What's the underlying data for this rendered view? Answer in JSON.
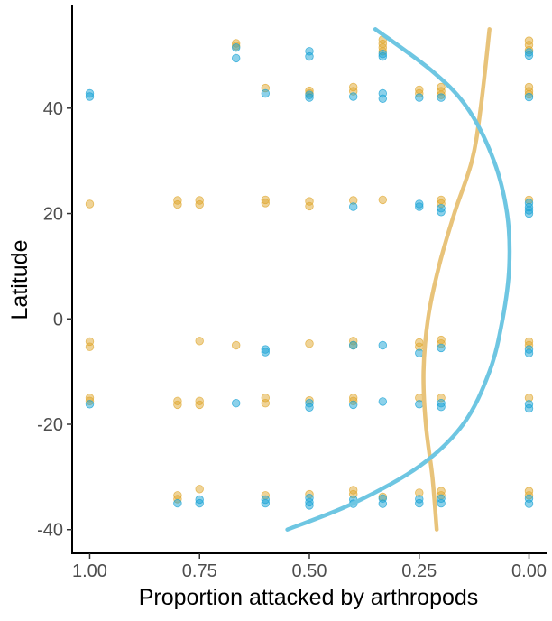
{
  "chart_data": {
    "type": "scatter",
    "xlabel": "Proportion attacked by arthropods",
    "ylabel": "Latitude",
    "x_reversed": true,
    "xlim": [
      1.04,
      -0.04
    ],
    "ylim": [
      -44.5,
      59.5
    ],
    "x_ticks": [
      1.0,
      0.75,
      0.5,
      0.25,
      0.0
    ],
    "x_tick_labels": [
      "1.00",
      "0.75",
      "0.50",
      "0.25",
      "0.00"
    ],
    "y_ticks": [
      40,
      20,
      0,
      -20,
      -40
    ],
    "y_tick_labels": [
      "40",
      "20",
      "0",
      "-20",
      "-40"
    ],
    "grid": false,
    "legend": "none",
    "series": [
      {
        "color": "#E0A830",
        "points": [
          [
            0.667,
            52.3
          ],
          [
            0.667,
            51.8
          ],
          [
            0.6,
            43.8
          ],
          [
            0.5,
            43.3
          ],
          [
            0.5,
            42.8
          ],
          [
            0.4,
            44.0
          ],
          [
            0.4,
            43.2
          ],
          [
            0.333,
            53.0
          ],
          [
            0.333,
            52.2
          ],
          [
            0.333,
            51.5
          ],
          [
            0.333,
            50.8
          ],
          [
            0.25,
            43.5
          ],
          [
            0.25,
            42.8
          ],
          [
            0.2,
            44.0
          ],
          [
            0.2,
            43.2
          ],
          [
            0.2,
            42.5
          ],
          [
            0.0,
            52.8
          ],
          [
            0.0,
            52.0
          ],
          [
            0.0,
            51.0
          ],
          [
            0.0,
            44.0
          ],
          [
            0.0,
            43.2
          ],
          [
            0.0,
            42.6
          ],
          [
            1.0,
            21.8
          ],
          [
            0.8,
            22.5
          ],
          [
            0.8,
            21.7
          ],
          [
            0.75,
            22.5
          ],
          [
            0.75,
            21.7
          ],
          [
            0.6,
            22.6
          ],
          [
            0.6,
            22.0
          ],
          [
            0.5,
            22.3
          ],
          [
            0.5,
            21.4
          ],
          [
            0.4,
            22.5
          ],
          [
            0.333,
            22.6
          ],
          [
            0.2,
            22.6
          ],
          [
            0.2,
            21.9
          ],
          [
            0.0,
            22.6
          ],
          [
            1.0,
            -4.3
          ],
          [
            1.0,
            -5.3
          ],
          [
            0.75,
            -4.2
          ],
          [
            0.667,
            -5.0
          ],
          [
            0.5,
            -4.7
          ],
          [
            0.4,
            -4.2
          ],
          [
            0.4,
            -5.0
          ],
          [
            0.25,
            -4.5
          ],
          [
            0.25,
            -5.3
          ],
          [
            0.2,
            -4.0
          ],
          [
            0.2,
            -4.7
          ],
          [
            0.0,
            -4.3
          ],
          [
            0.0,
            -5.0
          ],
          [
            1.0,
            -15.0
          ],
          [
            1.0,
            -15.6
          ],
          [
            0.8,
            -15.6
          ],
          [
            0.8,
            -16.3
          ],
          [
            0.75,
            -15.6
          ],
          [
            0.75,
            -16.3
          ],
          [
            0.6,
            -15.0
          ],
          [
            0.6,
            -16.0
          ],
          [
            0.5,
            -15.5
          ],
          [
            0.4,
            -15.0
          ],
          [
            0.4,
            -15.6
          ],
          [
            0.25,
            -15.0
          ],
          [
            0.2,
            -15.0
          ],
          [
            0.0,
            -15.0
          ],
          [
            0.8,
            -33.5
          ],
          [
            0.8,
            -34.2
          ],
          [
            0.75,
            -32.3
          ],
          [
            0.6,
            -33.5
          ],
          [
            0.5,
            -33.3
          ],
          [
            0.4,
            -33.3
          ],
          [
            0.4,
            -32.5
          ],
          [
            0.333,
            -33.8
          ],
          [
            0.25,
            -33.0
          ],
          [
            0.2,
            -33.5
          ],
          [
            0.2,
            -32.7
          ],
          [
            0.0,
            -32.7
          ],
          [
            0.0,
            -33.5
          ]
        ]
      },
      {
        "color": "#1AA3D6",
        "points": [
          [
            1.0,
            42.8
          ],
          [
            1.0,
            42.2
          ],
          [
            0.667,
            51.5
          ],
          [
            0.667,
            49.5
          ],
          [
            0.6,
            42.8
          ],
          [
            0.5,
            50.8
          ],
          [
            0.5,
            49.8
          ],
          [
            0.5,
            42.5
          ],
          [
            0.5,
            42.0
          ],
          [
            0.4,
            42.2
          ],
          [
            0.333,
            49.8
          ],
          [
            0.333,
            50.3
          ],
          [
            0.333,
            42.8
          ],
          [
            0.333,
            41.8
          ],
          [
            0.25,
            42.0
          ],
          [
            0.2,
            42.0
          ],
          [
            0.0,
            50.0
          ],
          [
            0.0,
            50.6
          ],
          [
            0.0,
            42.1
          ],
          [
            0.4,
            21.3
          ],
          [
            0.25,
            21.8
          ],
          [
            0.25,
            21.3
          ],
          [
            0.2,
            21.0
          ],
          [
            0.2,
            20.3
          ],
          [
            0.0,
            22.0
          ],
          [
            0.0,
            21.2
          ],
          [
            0.0,
            20.6
          ],
          [
            0.0,
            20.0
          ],
          [
            0.6,
            -5.8
          ],
          [
            0.6,
            -6.3
          ],
          [
            0.4,
            -5.0
          ],
          [
            0.333,
            -5.0
          ],
          [
            0.25,
            -6.5
          ],
          [
            0.2,
            -5.5
          ],
          [
            0.0,
            -5.8
          ],
          [
            0.0,
            -6.5
          ],
          [
            1.0,
            -16.2
          ],
          [
            0.667,
            -16.0
          ],
          [
            0.5,
            -16.0
          ],
          [
            0.5,
            -16.8
          ],
          [
            0.4,
            -16.3
          ],
          [
            0.333,
            -15.7
          ],
          [
            0.25,
            -16.2
          ],
          [
            0.2,
            -16.0
          ],
          [
            0.2,
            -16.7
          ],
          [
            0.0,
            -16.2
          ],
          [
            0.0,
            -17.0
          ],
          [
            0.8,
            -35.0
          ],
          [
            0.75,
            -35.0
          ],
          [
            0.75,
            -34.3
          ],
          [
            0.6,
            -34.3
          ],
          [
            0.6,
            -35.0
          ],
          [
            0.5,
            -34.0
          ],
          [
            0.5,
            -34.8
          ],
          [
            0.5,
            -35.4
          ],
          [
            0.4,
            -34.3
          ],
          [
            0.4,
            -35.1
          ],
          [
            0.333,
            -34.1
          ],
          [
            0.333,
            -35.1
          ],
          [
            0.25,
            -34.2
          ],
          [
            0.25,
            -35.0
          ],
          [
            0.2,
            -34.1
          ],
          [
            0.2,
            -35.0
          ],
          [
            0.0,
            -34.1
          ],
          [
            0.0,
            -35.1
          ]
        ]
      }
    ],
    "curves": [
      {
        "color": "#E8C37A",
        "points": [
          [
            0.21,
            -40
          ],
          [
            0.22,
            -30
          ],
          [
            0.235,
            -20
          ],
          [
            0.24,
            -10
          ],
          [
            0.23,
            0
          ],
          [
            0.205,
            10
          ],
          [
            0.17,
            20
          ],
          [
            0.13,
            30
          ],
          [
            0.11,
            40
          ],
          [
            0.09,
            55
          ]
        ]
      },
      {
        "color": "#6EC6E2",
        "points": [
          [
            0.55,
            -40
          ],
          [
            0.4,
            -35
          ],
          [
            0.25,
            -28
          ],
          [
            0.15,
            -20
          ],
          [
            0.09,
            -10
          ],
          [
            0.06,
            0
          ],
          [
            0.045,
            10
          ],
          [
            0.05,
            20
          ],
          [
            0.08,
            30
          ],
          [
            0.14,
            40
          ],
          [
            0.22,
            47
          ],
          [
            0.35,
            55
          ]
        ]
      }
    ]
  }
}
